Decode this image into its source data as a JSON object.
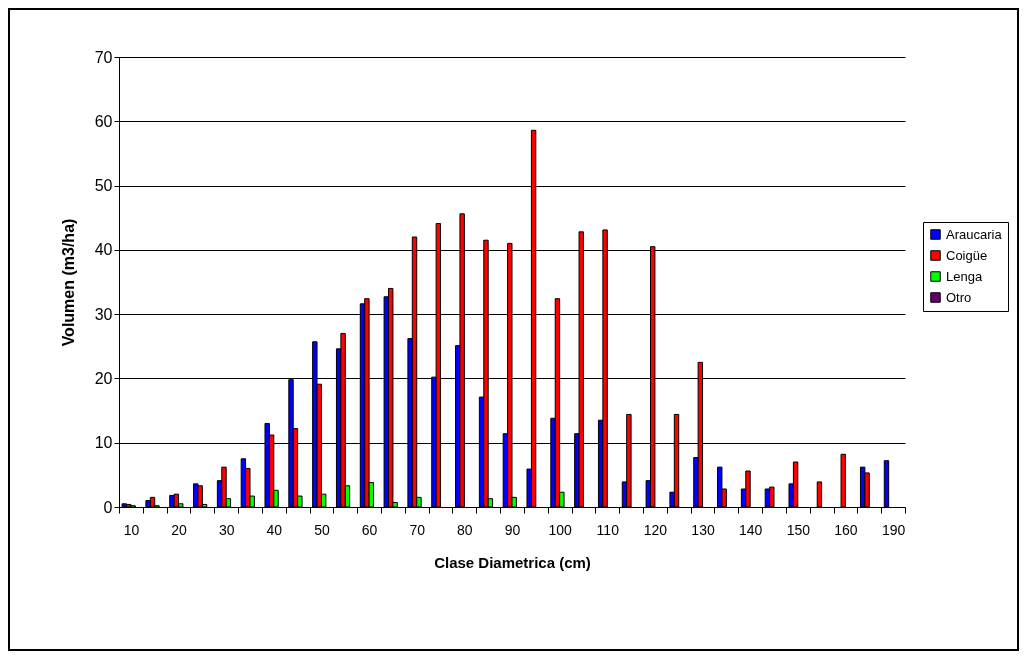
{
  "chart_data": {
    "type": "bar",
    "xlabel": "Clase Diametrica (cm)",
    "ylabel": "Volumen (m3/ha)",
    "categories": [
      "10",
      null,
      "20",
      null,
      "30",
      null,
      "40",
      null,
      "50",
      null,
      "60",
      null,
      "70",
      null,
      "80",
      null,
      "90",
      null,
      "100",
      null,
      "110",
      null,
      "120",
      null,
      "130",
      null,
      "140",
      null,
      "150",
      null,
      "160",
      null,
      "190"
    ],
    "series": [
      {
        "name": "Araucaria",
        "color": "#0000ff",
        "values": [
          0.5,
          1.0,
          1.8,
          3.6,
          4.1,
          7.5,
          13.0,
          19.8,
          25.7,
          24.6,
          31.6,
          32.7,
          26.2,
          20.2,
          25.1,
          17.1,
          11.4,
          5.9,
          13.8,
          11.4,
          13.5,
          3.9,
          4.1,
          2.3,
          7.7,
          6.2,
          2.8,
          2.8,
          3.6,
          null,
          null,
          6.2,
          7.2
        ]
      },
      {
        "name": "Coigüe",
        "color": "#ff0000",
        "values": [
          0.4,
          1.5,
          2.0,
          3.3,
          6.2,
          6.0,
          11.2,
          12.2,
          19.1,
          27.0,
          32.4,
          34.0,
          42.0,
          44.1,
          45.6,
          41.5,
          41.0,
          58.6,
          32.4,
          42.8,
          43.1,
          14.4,
          40.5,
          14.4,
          22.5,
          2.8,
          5.6,
          3.1,
          7.0,
          3.9,
          8.2,
          5.3,
          null
        ]
      },
      {
        "name": "Lenga",
        "color": "#00ff00",
        "values": [
          0.2,
          0.2,
          0.5,
          0.4,
          1.3,
          1.7,
          2.6,
          1.7,
          2.0,
          3.3,
          3.8,
          0.7,
          1.5,
          null,
          null,
          1.3,
          1.5,
          null,
          2.3,
          null,
          null,
          null,
          null,
          null,
          null,
          null,
          null,
          null,
          null,
          null,
          null,
          null,
          null
        ]
      },
      {
        "name": "Otro",
        "color": "#660066",
        "values": [
          null,
          null,
          null,
          null,
          null,
          null,
          null,
          null,
          null,
          null,
          null,
          null,
          null,
          null,
          null,
          null,
          null,
          null,
          null,
          null,
          null,
          null,
          null,
          null,
          null,
          null,
          null,
          null,
          null,
          null,
          null,
          null,
          null
        ]
      }
    ],
    "ylim": [
      0,
      70
    ],
    "yticks": [
      0,
      10,
      20,
      30,
      40,
      50,
      60,
      70
    ],
    "grid": "y",
    "legend": "right"
  }
}
